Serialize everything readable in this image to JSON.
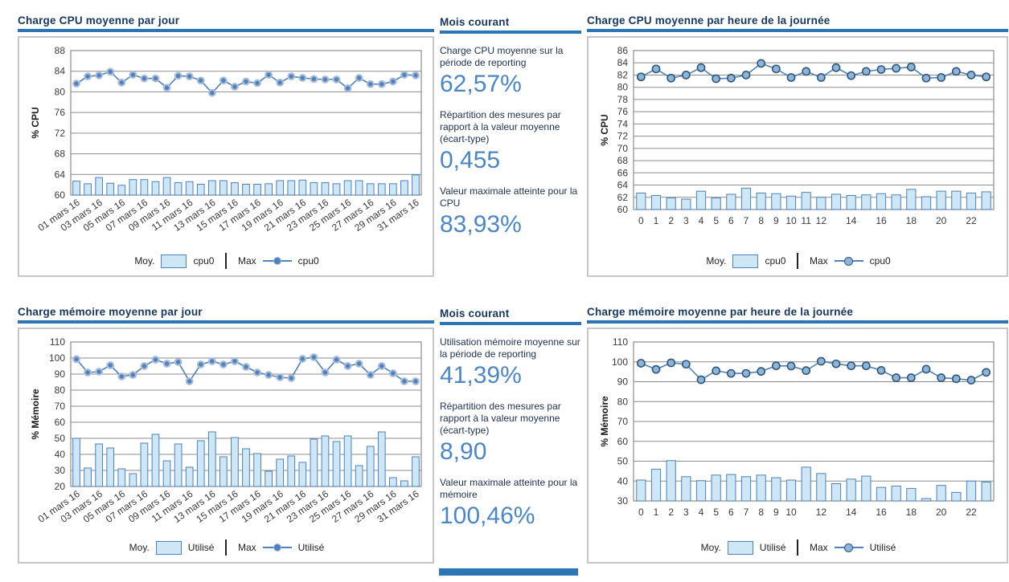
{
  "colors": {
    "title_text": "#17375E",
    "accent_rule": "#2E75B6",
    "stat_value": "#4B86C6",
    "bar_fill": "#CDE7F6",
    "bar_stroke": "#4E81BD",
    "line": "#4E81BD",
    "grid": "#8C8C8C",
    "axis_text": "#3A3A3A"
  },
  "stats_panels": [
    {
      "title": "Mois courant",
      "items": [
        {
          "label": "Charge CPU moyenne sur la période de reporting",
          "value": "62,57%"
        },
        {
          "label": "Répartition des mesures par rapport à la valeur moyenne (écart-type)",
          "value": "0,455"
        },
        {
          "label": "Valeur maximale atteinte pour la CPU",
          "value": "83,93%"
        }
      ]
    },
    {
      "title": "Mois courant",
      "items": [
        {
          "label": "Utilisation mémoire moyenne sur la période de reporting",
          "value": "41,39%"
        },
        {
          "label": "Répartition des mesures par rapport à la valeur moyenne (écart-type)",
          "value": "8,90"
        },
        {
          "label": "Valeur maximale atteinte pour la mémoire",
          "value": "100,46%"
        }
      ]
    }
  ],
  "chart_data": [
    {
      "type": "bar+line",
      "title": "Charge CPU  moyenne par jour",
      "ylabel": "% CPU",
      "ylim": [
        60,
        88
      ],
      "ystep": 4,
      "grid": true,
      "legend_position": "bottom",
      "categories": [
        "01 mars 16",
        "02 mars 16",
        "03 mars 16",
        "04 mars 16",
        "05 mars 16",
        "06 mars 16",
        "07 mars 16",
        "08 mars 16",
        "09 mars 16",
        "10 mars 16",
        "11 mars 16",
        "12 mars 16",
        "13 mars 16",
        "14 mars 16",
        "15 mars 16",
        "16 mars 16",
        "17 mars 16",
        "18 mars 16",
        "19 mars 16",
        "20 mars 16",
        "21 mars 16",
        "22 mars 16",
        "23 mars 16",
        "24 mars 16",
        "25 mars 16",
        "26 mars 16",
        "27 mars 16",
        "28 mars 16",
        "29 mars 16",
        "30 mars 16",
        "31 mars 16"
      ],
      "x_tick_indices": [
        0,
        2,
        4,
        6,
        8,
        10,
        12,
        14,
        16,
        18,
        20,
        22,
        24,
        26,
        28,
        30
      ],
      "x_tick_labels": [
        "01 mars 16",
        "03 mars 16",
        "05 mars 16",
        "07 mars 16",
        "09 mars 16",
        "11 mars 16",
        "13 mars 16",
        "15 mars 16",
        "17 mars 16",
        "19 mars 16",
        "21 mars 16",
        "23 mars 16",
        "25 mars 16",
        "27 mars 16",
        "29 mars 16",
        "31 mars 16"
      ],
      "series": [
        {
          "role": "Moy.",
          "name": "cpu0",
          "type": "bar",
          "values": [
            62.7,
            62.2,
            63.4,
            62.3,
            61.9,
            63.0,
            63.0,
            62.6,
            63.4,
            62.4,
            62.6,
            62.1,
            62.8,
            62.8,
            62.4,
            62.1,
            62.1,
            62.2,
            62.8,
            62.8,
            62.9,
            62.4,
            62.4,
            62.2,
            62.8,
            62.8,
            62.2,
            62.2,
            62.2,
            62.8,
            63.9
          ]
        },
        {
          "role": "Max",
          "name": "cpu0",
          "type": "line",
          "values": [
            81.6,
            83.0,
            83.2,
            83.9,
            81.8,
            83.3,
            82.6,
            82.6,
            80.8,
            83.1,
            83.0,
            82.2,
            79.8,
            82.2,
            81.0,
            82.0,
            81.7,
            83.3,
            81.8,
            83.0,
            82.7,
            82.5,
            82.4,
            82.4,
            80.7,
            82.7,
            81.5,
            81.5,
            82.0,
            83.3,
            83.2
          ]
        }
      ],
      "legend": {
        "avg_label": "Moy.",
        "avg_series": "cpu0",
        "max_label": "Max",
        "max_series": "cpu0"
      }
    },
    {
      "type": "bar+line",
      "title": "Charge CPU moyenne par heure de la journée",
      "ylabel": "% CPU",
      "ylim": [
        60,
        86
      ],
      "ystep": 2,
      "grid": true,
      "legend_position": "bottom",
      "categories": [
        "0",
        "1",
        "2",
        "3",
        "4",
        "5",
        "6",
        "7",
        "8",
        "9",
        "10",
        "11",
        "12",
        "13",
        "14",
        "15",
        "16",
        "17",
        "18",
        "19",
        "20",
        "21",
        "22",
        "23"
      ],
      "x_tick_indices": [
        0,
        1,
        2,
        3,
        4,
        5,
        6,
        7,
        8,
        9,
        10,
        11,
        12,
        14,
        16,
        18,
        20,
        22
      ],
      "x_tick_labels": [
        "0",
        "1",
        "2",
        "3",
        "4",
        "5",
        "6",
        "7",
        "8",
        "9",
        "10",
        "11",
        "12",
        "14",
        "16",
        "18",
        "20",
        "22"
      ],
      "series": [
        {
          "role": "Moy.",
          "name": "cpu0",
          "type": "bar",
          "values": [
            62.7,
            62.3,
            61.9,
            61.7,
            63.0,
            61.9,
            62.5,
            63.5,
            62.7,
            62.6,
            62.2,
            62.8,
            62.0,
            62.5,
            62.3,
            62.4,
            62.6,
            62.4,
            63.3,
            62.1,
            63.0,
            63.0,
            62.7,
            62.9
          ]
        },
        {
          "role": "Max",
          "name": "cpu0",
          "type": "line",
          "values": [
            81.7,
            83.0,
            81.5,
            82.0,
            83.2,
            81.4,
            81.5,
            82.0,
            83.9,
            83.0,
            81.6,
            82.6,
            81.6,
            83.2,
            81.9,
            82.6,
            82.9,
            83.1,
            83.3,
            81.5,
            81.6,
            82.6,
            82.0,
            81.7
          ]
        }
      ],
      "legend": {
        "avg_label": "Moy.",
        "avg_series": "cpu0",
        "max_label": "Max",
        "max_series": "cpu0"
      }
    },
    {
      "type": "bar+line",
      "title": "Charge mémoire moyenne par jour",
      "ylabel": "% Mémoire",
      "ylim": [
        20,
        110
      ],
      "ystep": 10,
      "grid": true,
      "legend_position": "bottom",
      "categories": [
        "01 mars 16",
        "02 mars 16",
        "03 mars 16",
        "04 mars 16",
        "05 mars 16",
        "06 mars 16",
        "07 mars 16",
        "08 mars 16",
        "09 mars 16",
        "10 mars 16",
        "11 mars 16",
        "12 mars 16",
        "13 mars 16",
        "14 mars 16",
        "15 mars 16",
        "16 mars 16",
        "17 mars 16",
        "18 mars 16",
        "19 mars 16",
        "20 mars 16",
        "21 mars 16",
        "22 mars 16",
        "23 mars 16",
        "24 mars 16",
        "25 mars 16",
        "26 mars 16",
        "27 mars 16",
        "28 mars 16",
        "29 mars 16",
        "30 mars 16",
        "31 mars 16"
      ],
      "x_tick_indices": [
        0,
        2,
        4,
        6,
        8,
        10,
        12,
        14,
        16,
        18,
        20,
        22,
        24,
        26,
        28,
        30
      ],
      "x_tick_labels": [
        "01 mars 16",
        "03 mars 16",
        "05 mars 16",
        "07 mars 16",
        "09 mars 16",
        "11 mars 16",
        "13 mars 16",
        "15 mars 16",
        "17 mars 16",
        "19 mars 16",
        "21 mars 16",
        "23 mars 16",
        "25 mars 16",
        "27 mars 16",
        "29 mars 16",
        "31 mars 16"
      ],
      "series": [
        {
          "role": "Moy.",
          "name": "Utilisé",
          "type": "bar",
          "values": [
            50.0,
            31.5,
            46.5,
            44.0,
            31.0,
            28.0,
            47.0,
            52.5,
            36.0,
            46.5,
            32.0,
            48.5,
            54.0,
            38.5,
            50.5,
            43.5,
            40.5,
            29.5,
            37.0,
            39.0,
            35.0,
            49.5,
            51.5,
            48.0,
            51.5,
            33.0,
            45.0,
            54.0,
            25.5,
            23.5,
            38.5
          ]
        },
        {
          "role": "Max",
          "name": "Utilisé",
          "type": "line",
          "values": [
            99.3,
            91.0,
            91.5,
            95.5,
            88.5,
            89.5,
            95.0,
            99.0,
            96.5,
            97.5,
            85.5,
            96.0,
            98.0,
            96.0,
            98.0,
            94.5,
            91.0,
            89.5,
            88.0,
            87.5,
            99.5,
            100.5,
            91.0,
            99.0,
            95.0,
            96.5,
            89.5,
            95.0,
            90.5,
            85.5,
            85.5
          ]
        }
      ],
      "legend": {
        "avg_label": "Moy.",
        "avg_series": "Utilisé",
        "max_label": "Max",
        "max_series": "Utilisé"
      }
    },
    {
      "type": "bar+line",
      "title": "Charge mémoire moyenne par heure de la journée",
      "ylabel": "% Mémoire",
      "ylim": [
        30,
        110
      ],
      "ystep": 10,
      "grid": true,
      "legend_position": "bottom",
      "categories": [
        "0",
        "1",
        "2",
        "3",
        "4",
        "5",
        "6",
        "7",
        "8",
        "9",
        "10",
        "11",
        "12",
        "13",
        "14",
        "15",
        "16",
        "17",
        "18",
        "19",
        "20",
        "21",
        "22",
        "23"
      ],
      "x_tick_indices": [
        0,
        1,
        2,
        3,
        4,
        5,
        6,
        7,
        8,
        9,
        10,
        12,
        14,
        16,
        18,
        20,
        22
      ],
      "x_tick_labels": [
        "0",
        "1",
        "2",
        "3",
        "4",
        "5",
        "6",
        "7",
        "8",
        "9",
        "10",
        "12",
        "14",
        "16",
        "18",
        "20",
        "22"
      ],
      "series": [
        {
          "role": "Moy.",
          "name": "Utilisé",
          "type": "bar",
          "values": [
            40.5,
            46.0,
            50.3,
            42.2,
            40.2,
            43.0,
            43.3,
            42.2,
            43.0,
            41.7,
            40.5,
            47.0,
            43.8,
            38.7,
            41.0,
            42.5,
            36.8,
            37.5,
            36.3,
            31.2,
            37.8,
            34.3,
            40.0,
            39.5
          ]
        },
        {
          "role": "Max",
          "name": "Utilisé",
          "type": "line",
          "values": [
            99.3,
            96.2,
            99.5,
            98.8,
            91.0,
            95.5,
            94.2,
            94.2,
            95.2,
            98.0,
            97.9,
            95.6,
            100.3,
            99.0,
            98.0,
            98.0,
            95.7,
            92.0,
            92.0,
            96.3,
            92.0,
            91.5,
            90.8,
            94.7
          ]
        }
      ],
      "legend": {
        "avg_label": "Moy.",
        "avg_series": "Utilisé",
        "max_label": "Max",
        "max_series": "Utilisé"
      }
    }
  ]
}
